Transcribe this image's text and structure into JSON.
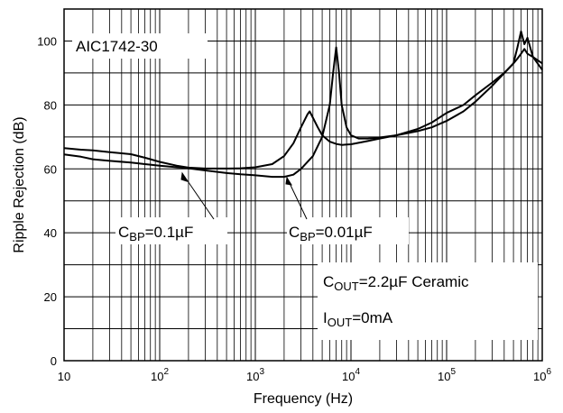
{
  "chart_data": {
    "type": "line",
    "title": "",
    "annotation_title": "AIC1742-30",
    "xlabel": "Frequency (Hz)",
    "ylabel": "Ripple Rejection (dB)",
    "xscale": "log",
    "xlim": [
      10,
      1000000
    ],
    "ylim": [
      0,
      110
    ],
    "grid": true,
    "x_ticks": [
      {
        "base": "10",
        "exp": ""
      },
      {
        "base": "10",
        "exp": "2"
      },
      {
        "base": "10",
        "exp": "3"
      },
      {
        "base": "10",
        "exp": "4"
      },
      {
        "base": "10",
        "exp": "5"
      },
      {
        "base": "10",
        "exp": "6"
      }
    ],
    "y_ticks": [
      "0",
      "20",
      "40",
      "60",
      "80",
      "100"
    ],
    "series": [
      {
        "name_main": "C",
        "name_sub": "BP",
        "name_rest": "=0.1µF",
        "x": [
          10,
          15,
          20,
          30,
          50,
          70,
          100,
          150,
          200,
          300,
          500,
          700,
          1000,
          1500,
          2000,
          2500,
          3000,
          3500,
          3700,
          4000,
          4500,
          5000,
          6000,
          7000,
          8000,
          10000,
          15000,
          20000,
          30000,
          50000,
          70000,
          100000,
          150000,
          200000,
          300000,
          400000,
          500000,
          550000,
          600000,
          650000,
          700000,
          800000,
          1000000
        ],
        "y": [
          66.5,
          66,
          65.8,
          65.2,
          64.6,
          63.5,
          62.2,
          61,
          60.4,
          60.1,
          60.1,
          60.2,
          60.5,
          61.5,
          64,
          68,
          73,
          77,
          78,
          76,
          73,
          70.5,
          68.5,
          67.8,
          67.5,
          67.7,
          68.7,
          69.5,
          70.5,
          72.5,
          74.5,
          77.5,
          80,
          83,
          87,
          90,
          93,
          94.5,
          96,
          97.5,
          96,
          95,
          93
        ]
      },
      {
        "name_main": "C",
        "name_sub": "BP",
        "name_rest": "=0.01µF",
        "x": [
          10,
          15,
          20,
          30,
          50,
          70,
          100,
          200,
          300,
          500,
          700,
          1000,
          1500,
          2000,
          2500,
          3000,
          4000,
          5000,
          6000,
          6500,
          7000,
          7500,
          8000,
          9000,
          10000,
          12000,
          15000,
          20000,
          30000,
          50000,
          70000,
          100000,
          150000,
          200000,
          300000,
          500000,
          550000,
          600000,
          650000,
          700000,
          800000,
          1000000
        ],
        "y": [
          64.5,
          63.8,
          63,
          62.5,
          62,
          61.5,
          61,
          60.2,
          59.5,
          58.7,
          58.3,
          58,
          57.5,
          57.5,
          58.2,
          60,
          64,
          70,
          80,
          90,
          98,
          90,
          80,
          73,
          70.5,
          69.5,
          69.5,
          69.8,
          70.5,
          71.8,
          73,
          75,
          78,
          81,
          86,
          93,
          98,
          103,
          99,
          101,
          95,
          91
        ]
      }
    ],
    "notes": [
      {
        "main": "C",
        "sub": "OUT",
        "rest": "=2.2µF Ceramic"
      },
      {
        "main": "I",
        "sub": "OUT",
        "rest": "=0mA"
      }
    ]
  }
}
